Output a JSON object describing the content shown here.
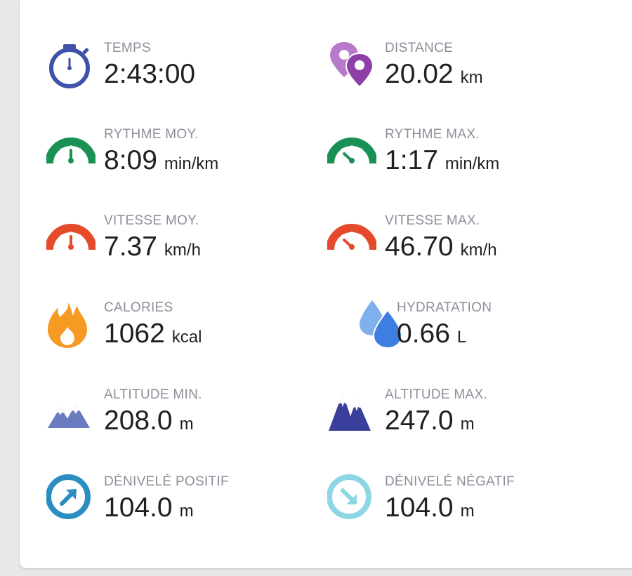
{
  "stats": [
    {
      "id": "temps",
      "label": "TEMPS",
      "value": "2:43:00",
      "unit": "",
      "icon": "stopwatch-icon"
    },
    {
      "id": "distance",
      "label": "DISTANCE",
      "value": "20.02",
      "unit": "km",
      "icon": "location-pins-icon"
    },
    {
      "id": "rythme-moy",
      "label": "RYTHME MOY.",
      "value": "8:09",
      "unit": "min/km",
      "icon": "gauge-green-icon"
    },
    {
      "id": "rythme-max",
      "label": "RYTHME MAX.",
      "value": "1:17",
      "unit": "min/km",
      "icon": "gauge-green-high-icon"
    },
    {
      "id": "vitesse-moy",
      "label": "VITESSE MOY.",
      "value": "7.37",
      "unit": "km/h",
      "icon": "gauge-orange-icon"
    },
    {
      "id": "vitesse-max",
      "label": "VITESSE MAX.",
      "value": "46.70",
      "unit": "km/h",
      "icon": "gauge-orange-high-icon"
    },
    {
      "id": "calories",
      "label": "CALORIES",
      "value": "1062",
      "unit": "kcal",
      "icon": "flame-icon"
    },
    {
      "id": "hydratation",
      "label": "HYDRATATION",
      "value": "0.66",
      "unit": "L",
      "icon": "water-drops-icon"
    },
    {
      "id": "altitude-min",
      "label": "ALTITUDE MIN.",
      "value": "208.0",
      "unit": "m",
      "icon": "mountains-light-icon"
    },
    {
      "id": "altitude-max",
      "label": "ALTITUDE MAX.",
      "value": "247.0",
      "unit": "m",
      "icon": "mountains-dark-icon"
    },
    {
      "id": "denivele-positif",
      "label": "DÉNIVELÉ POSITIF",
      "value": "104.0",
      "unit": "m",
      "icon": "arrow-up-right-circle-icon"
    },
    {
      "id": "denivele-negatif",
      "label": "DÉNIVELÉ NÉGATIF",
      "value": "104.0",
      "unit": "m",
      "icon": "arrow-down-right-circle-icon"
    }
  ],
  "colors": {
    "blue": "#3f51a8",
    "purple": "#8e3fa8",
    "purple_light": "#b779c9",
    "green": "#1a9154",
    "orange_red": "#e54b2b",
    "orange": "#f59a23",
    "drop_light": "#7fb0ee",
    "drop_dark": "#3d7ee0",
    "mountain_light": "#6b7bc0",
    "mountain_dark": "#3b3f9c",
    "teal": "#2a8fc0",
    "teal_light": "#8dd7e4",
    "label_gray": "#8b8f99"
  }
}
